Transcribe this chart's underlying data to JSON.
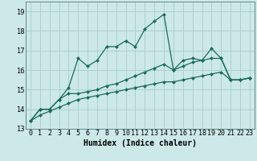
{
  "xlabel": "Humidex (Indice chaleur)",
  "background_color": "#cce8e8",
  "grid_color": "#aacccc",
  "line_color": "#1a6b5a",
  "xlim": [
    -0.5,
    23.5
  ],
  "ylim": [
    13.0,
    19.5
  ],
  "yticks": [
    13,
    14,
    15,
    16,
    17,
    18,
    19
  ],
  "xticks": [
    0,
    1,
    2,
    3,
    4,
    5,
    6,
    7,
    8,
    9,
    10,
    11,
    12,
    13,
    14,
    15,
    16,
    17,
    18,
    19,
    20,
    21,
    22,
    23
  ],
  "series": [
    [
      13.4,
      14.0,
      14.0,
      14.5,
      15.1,
      16.6,
      16.2,
      16.5,
      17.2,
      17.2,
      17.5,
      17.2,
      18.1,
      18.5,
      18.85,
      16.0,
      16.5,
      16.6,
      16.5,
      17.1,
      16.6,
      15.5,
      15.5,
      15.6
    ],
    [
      13.4,
      14.0,
      14.0,
      14.5,
      14.8,
      14.8,
      14.9,
      15.0,
      15.2,
      15.3,
      15.5,
      15.7,
      15.9,
      16.1,
      16.3,
      16.0,
      16.2,
      16.4,
      16.5,
      16.6,
      16.6,
      15.5,
      15.5,
      15.6
    ],
    [
      13.4,
      13.7,
      13.9,
      14.1,
      14.3,
      14.5,
      14.6,
      14.7,
      14.8,
      14.9,
      15.0,
      15.1,
      15.2,
      15.3,
      15.4,
      15.4,
      15.5,
      15.6,
      15.7,
      15.8,
      15.9,
      15.5,
      15.5,
      15.6
    ]
  ],
  "label_fontsize": 7,
  "tick_fontsize": 6
}
